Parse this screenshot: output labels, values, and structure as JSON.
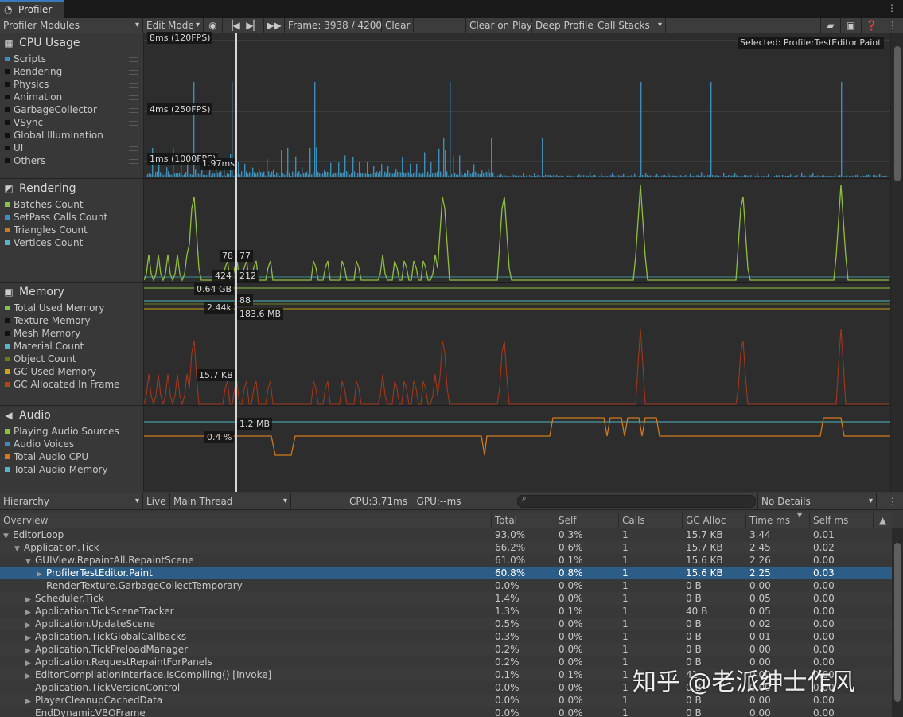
{
  "window": {
    "tab_title": "Profiler"
  },
  "toolbar": {
    "modules_dropdown": "Profiler Modules",
    "mode_dropdown": "Edit Mode",
    "frame_label": "Frame: 3938 / 4200",
    "clear": "Clear",
    "clear_on_play": "Clear on Play",
    "deep_profile": "Deep Profile",
    "call_stacks": "Call Stacks"
  },
  "modules": {
    "cpu": {
      "title": "CPU Usage",
      "items": [
        {
          "label": "Scripts",
          "color": "#3d8fb8"
        },
        {
          "label": "Rendering",
          "color": "#111111"
        },
        {
          "label": "Physics",
          "color": "#111111"
        },
        {
          "label": "Animation",
          "color": "#111111"
        },
        {
          "label": "GarbageCollector",
          "color": "#111111"
        },
        {
          "label": "VSync",
          "color": "#111111"
        },
        {
          "label": "Global Illumination",
          "color": "#111111"
        },
        {
          "label": "UI",
          "color": "#111111"
        },
        {
          "label": "Others",
          "color": "#111111"
        }
      ]
    },
    "rendering": {
      "title": "Rendering",
      "items": [
        {
          "label": "Batches Count",
          "color": "#8fbf3f"
        },
        {
          "label": "SetPass Calls Count",
          "color": "#3d8fb8"
        },
        {
          "label": "Triangles Count",
          "color": "#d07a1c"
        },
        {
          "label": "Vertices Count",
          "color": "#4fb8c0"
        }
      ]
    },
    "memory": {
      "title": "Memory",
      "items": [
        {
          "label": "Total Used Memory",
          "color": "#8fbf3f"
        },
        {
          "label": "Texture Memory",
          "color": "#111111"
        },
        {
          "label": "Mesh Memory",
          "color": "#111111"
        },
        {
          "label": "Material Count",
          "color": "#4fb8c0"
        },
        {
          "label": "Object Count",
          "color": "#6e7a20"
        },
        {
          "label": "GC Used Memory",
          "color": "#d0a01c"
        },
        {
          "label": "GC Allocated In Frame",
          "color": "#b8401c"
        }
      ]
    },
    "audio": {
      "title": "Audio",
      "items": [
        {
          "label": "Playing Audio Sources",
          "color": "#8fbf3f"
        },
        {
          "label": "Audio Voices",
          "color": "#3d8fb8"
        },
        {
          "label": "Total Audio CPU",
          "color": "#d07a1c"
        },
        {
          "label": "Total Audio Memory",
          "color": "#4fb8c0"
        }
      ]
    }
  },
  "graph_labels": {
    "cpu_8ms": "8ms (120FPS)",
    "cpu_4ms": "4ms (250FPS)",
    "cpu_1ms": "1ms (1000FPS)",
    "cpu_value": "1.97ms",
    "selected": "Selected: ProfilerTestEditor.Paint",
    "rend_78": "78",
    "rend_77": "77",
    "rend_424": "424",
    "rend_212": "212",
    "mem_064": "0.64 GB",
    "mem_244": "2.44k",
    "mem_88": "88",
    "mem_1836": "183.6 MB",
    "mem_157": "15.7 KB",
    "audio_12": "1.2 MB",
    "audio_04": "0.4 %"
  },
  "bottom_toolbar": {
    "view": "Hierarchy",
    "live": "Live",
    "thread": "Main Thread",
    "cpu_gpu": "CPU:3.71ms   GPU:--ms",
    "details": "No Details"
  },
  "table": {
    "headers": {
      "overview": "Overview",
      "total": "Total",
      "self": "Self",
      "calls": "Calls",
      "gc": "GC Alloc",
      "time": "Time ms",
      "selfms": "Self ms"
    },
    "rows": [
      {
        "indent": 0,
        "arrow": "▼",
        "name": "EditorLoop",
        "total": "93.0%",
        "self": "0.3%",
        "calls": "1",
        "gc": "15.7 KB",
        "time": "3.44",
        "selfms": "0.01"
      },
      {
        "indent": 1,
        "arrow": "▼",
        "name": "Application.Tick",
        "total": "66.2%",
        "self": "0.6%",
        "calls": "1",
        "gc": "15.7 KB",
        "time": "2.45",
        "selfms": "0.02"
      },
      {
        "indent": 2,
        "arrow": "▼",
        "name": "GUIView.RepaintAll.RepaintScene",
        "total": "61.0%",
        "self": "0.1%",
        "calls": "1",
        "gc": "15.6 KB",
        "time": "2.26",
        "selfms": "0.00"
      },
      {
        "indent": 3,
        "arrow": "▶",
        "name": "ProfilerTestEditor.Paint",
        "total": "60.8%",
        "self": "0.8%",
        "calls": "1",
        "gc": "15.6 KB",
        "time": "2.25",
        "selfms": "0.03",
        "selected": true
      },
      {
        "indent": 3,
        "arrow": "",
        "name": "RenderTexture.GarbageCollectTemporary",
        "total": "0.0%",
        "self": "0.0%",
        "calls": "1",
        "gc": "0 B",
        "time": "0.00",
        "selfms": "0.00"
      },
      {
        "indent": 2,
        "arrow": "▶",
        "name": "Scheduler.Tick",
        "total": "1.4%",
        "self": "0.0%",
        "calls": "1",
        "gc": "0 B",
        "time": "0.05",
        "selfms": "0.00"
      },
      {
        "indent": 2,
        "arrow": "▶",
        "name": "Application.TickSceneTracker",
        "total": "1.3%",
        "self": "0.1%",
        "calls": "1",
        "gc": "40 B",
        "time": "0.05",
        "selfms": "0.00"
      },
      {
        "indent": 2,
        "arrow": "▶",
        "name": "Application.UpdateScene",
        "total": "0.5%",
        "self": "0.0%",
        "calls": "1",
        "gc": "0 B",
        "time": "0.02",
        "selfms": "0.00"
      },
      {
        "indent": 2,
        "arrow": "▶",
        "name": "Application.TickGlobalCallbacks",
        "total": "0.3%",
        "self": "0.0%",
        "calls": "1",
        "gc": "0 B",
        "time": "0.01",
        "selfms": "0.00"
      },
      {
        "indent": 2,
        "arrow": "▶",
        "name": "Application.TickPreloadManager",
        "total": "0.2%",
        "self": "0.0%",
        "calls": "1",
        "gc": "0 B",
        "time": "0.00",
        "selfms": "0.00"
      },
      {
        "indent": 2,
        "arrow": "▶",
        "name": "Application.RequestRepaintForPanels",
        "total": "0.2%",
        "self": "0.0%",
        "calls": "1",
        "gc": "0 B",
        "time": "0.00",
        "selfms": "0.00"
      },
      {
        "indent": 2,
        "arrow": "▶",
        "name": "EditorCompilationInterface.IsCompiling() [Invoke]",
        "total": "0.1%",
        "self": "0.1%",
        "calls": "1",
        "gc": "41",
        "time": "0.00",
        "selfms": "0.00"
      },
      {
        "indent": 2,
        "arrow": "",
        "name": "Application.TickVersionControl",
        "total": "0.0%",
        "self": "0.0%",
        "calls": "1",
        "gc": "0 B",
        "time": "0.00",
        "selfms": "0.00"
      },
      {
        "indent": 2,
        "arrow": "▶",
        "name": "PlayerCleanupCachedData",
        "total": "0.0%",
        "self": "0.0%",
        "calls": "1",
        "gc": "0 B",
        "time": "0.00",
        "selfms": "0.00"
      },
      {
        "indent": 2,
        "arrow": "",
        "name": "EndDynamicVBOFrame",
        "total": "0.0%",
        "self": "0.0%",
        "calls": "1",
        "gc": "0 B",
        "time": "0.00",
        "selfms": "0.00"
      }
    ]
  },
  "watermark": "知乎 @老派绅士作风"
}
